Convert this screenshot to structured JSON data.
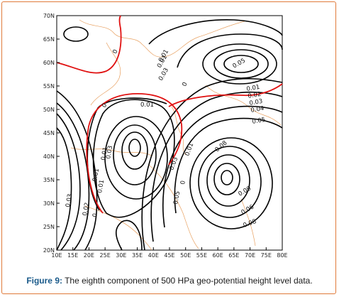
{
  "figure": {
    "caption_label": "Figure 9:",
    "caption_text": " The eighth component of 500 HPa geo-potential height level data."
  },
  "map": {
    "x_ticks": [
      "10E",
      "15E",
      "20E",
      "25E",
      "30E",
      "35E",
      "40E",
      "45E",
      "50E",
      "55E",
      "60E",
      "65E",
      "70E",
      "75E",
      "80E"
    ],
    "y_ticks": [
      "70N",
      "65N",
      "60N",
      "55N",
      "50N",
      "45N",
      "40N",
      "35N",
      "30N",
      "25N",
      "20N"
    ],
    "contour_labels": [
      "0",
      "0",
      "0.01",
      "0",
      "0.03",
      "0.01",
      "0.01",
      "0.01",
      "0.03",
      "0",
      "0",
      "0.01",
      "0.02",
      "0.03",
      "0.04",
      "0.05",
      "0.08",
      "0.09",
      "0.06",
      "0.08",
      "0.05",
      "0.03",
      "0.02",
      "0.03",
      "0.01",
      "0.01",
      "0.05",
      "0.01"
    ]
  },
  "colors": {
    "zero_contour": "#e01010",
    "contour": "#000000",
    "coastline": "#e8a060",
    "frame_border": "#e07a3a",
    "caption_label": "#1a5a8a"
  }
}
